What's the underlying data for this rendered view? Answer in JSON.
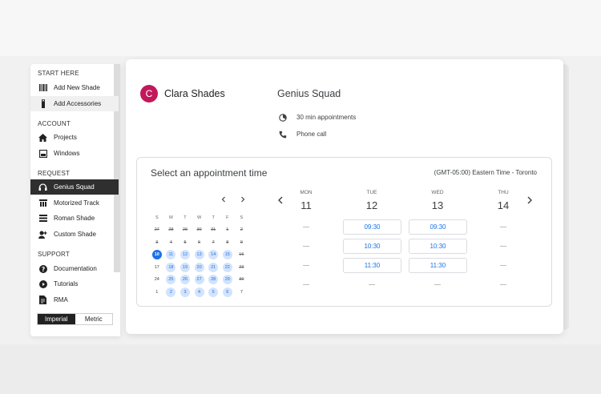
{
  "sidebar": {
    "sections": [
      {
        "label": "START HERE"
      },
      {
        "label": "ACCOUNT"
      },
      {
        "label": "REQUEST"
      },
      {
        "label": "SUPPORT"
      }
    ],
    "items": [
      {
        "label": "Add New Shade",
        "icon": "barcode-icon"
      },
      {
        "label": "Add Accessories",
        "icon": "remote-icon"
      },
      {
        "label": "Projects",
        "icon": "home-icon"
      },
      {
        "label": "Windows",
        "icon": "window-icon"
      },
      {
        "label": "Genius Squad",
        "icon": "headset-icon"
      },
      {
        "label": "Motorized Track",
        "icon": "track-icon"
      },
      {
        "label": "Roman Shade",
        "icon": "shade-icon"
      },
      {
        "label": "Custom Shade",
        "icon": "person-plus-icon"
      },
      {
        "label": "Documentation",
        "icon": "help-icon"
      },
      {
        "label": "Tutorials",
        "icon": "play-icon"
      },
      {
        "label": "RMA",
        "icon": "document-icon"
      }
    ],
    "units": {
      "imperial": "Imperial",
      "metric": "Metric"
    }
  },
  "booking": {
    "avatar_letter": "C",
    "avatar_color": "#c2185b",
    "host_name": "Clara Shades",
    "event_name": "Genius Squad",
    "duration": "30 min appointments",
    "location": "Phone call",
    "panel_title": "Select an appointment time",
    "timezone": "(GMT-05:00) Eastern Time - Toronto"
  },
  "calendar": {
    "weekdays": [
      "S",
      "M",
      "T",
      "W",
      "T",
      "F",
      "S"
    ],
    "weeks": [
      [
        "27",
        "28",
        "29",
        "30",
        "31",
        "1",
        "2"
      ],
      [
        "3",
        "4",
        "5",
        "6",
        "7",
        "8",
        "9"
      ],
      [
        "10",
        "11",
        "12",
        "13",
        "14",
        "15",
        "16"
      ],
      [
        "17",
        "18",
        "19",
        "20",
        "21",
        "22",
        "23"
      ],
      [
        "24",
        "25",
        "26",
        "27",
        "28",
        "29",
        "30"
      ],
      [
        "1",
        "2",
        "3",
        "4",
        "5",
        "6",
        "7"
      ]
    ],
    "accent": "#1a73e8"
  },
  "week": {
    "days": [
      {
        "dow": "MON",
        "date": "11",
        "slots": []
      },
      {
        "dow": "TUE",
        "date": "12",
        "slots": [
          "09:30",
          "10:30",
          "11:30"
        ]
      },
      {
        "dow": "WED",
        "date": "13",
        "slots": [
          "09:30",
          "10:30",
          "11:30"
        ]
      },
      {
        "dow": "THU",
        "date": "14",
        "slots": []
      }
    ]
  }
}
